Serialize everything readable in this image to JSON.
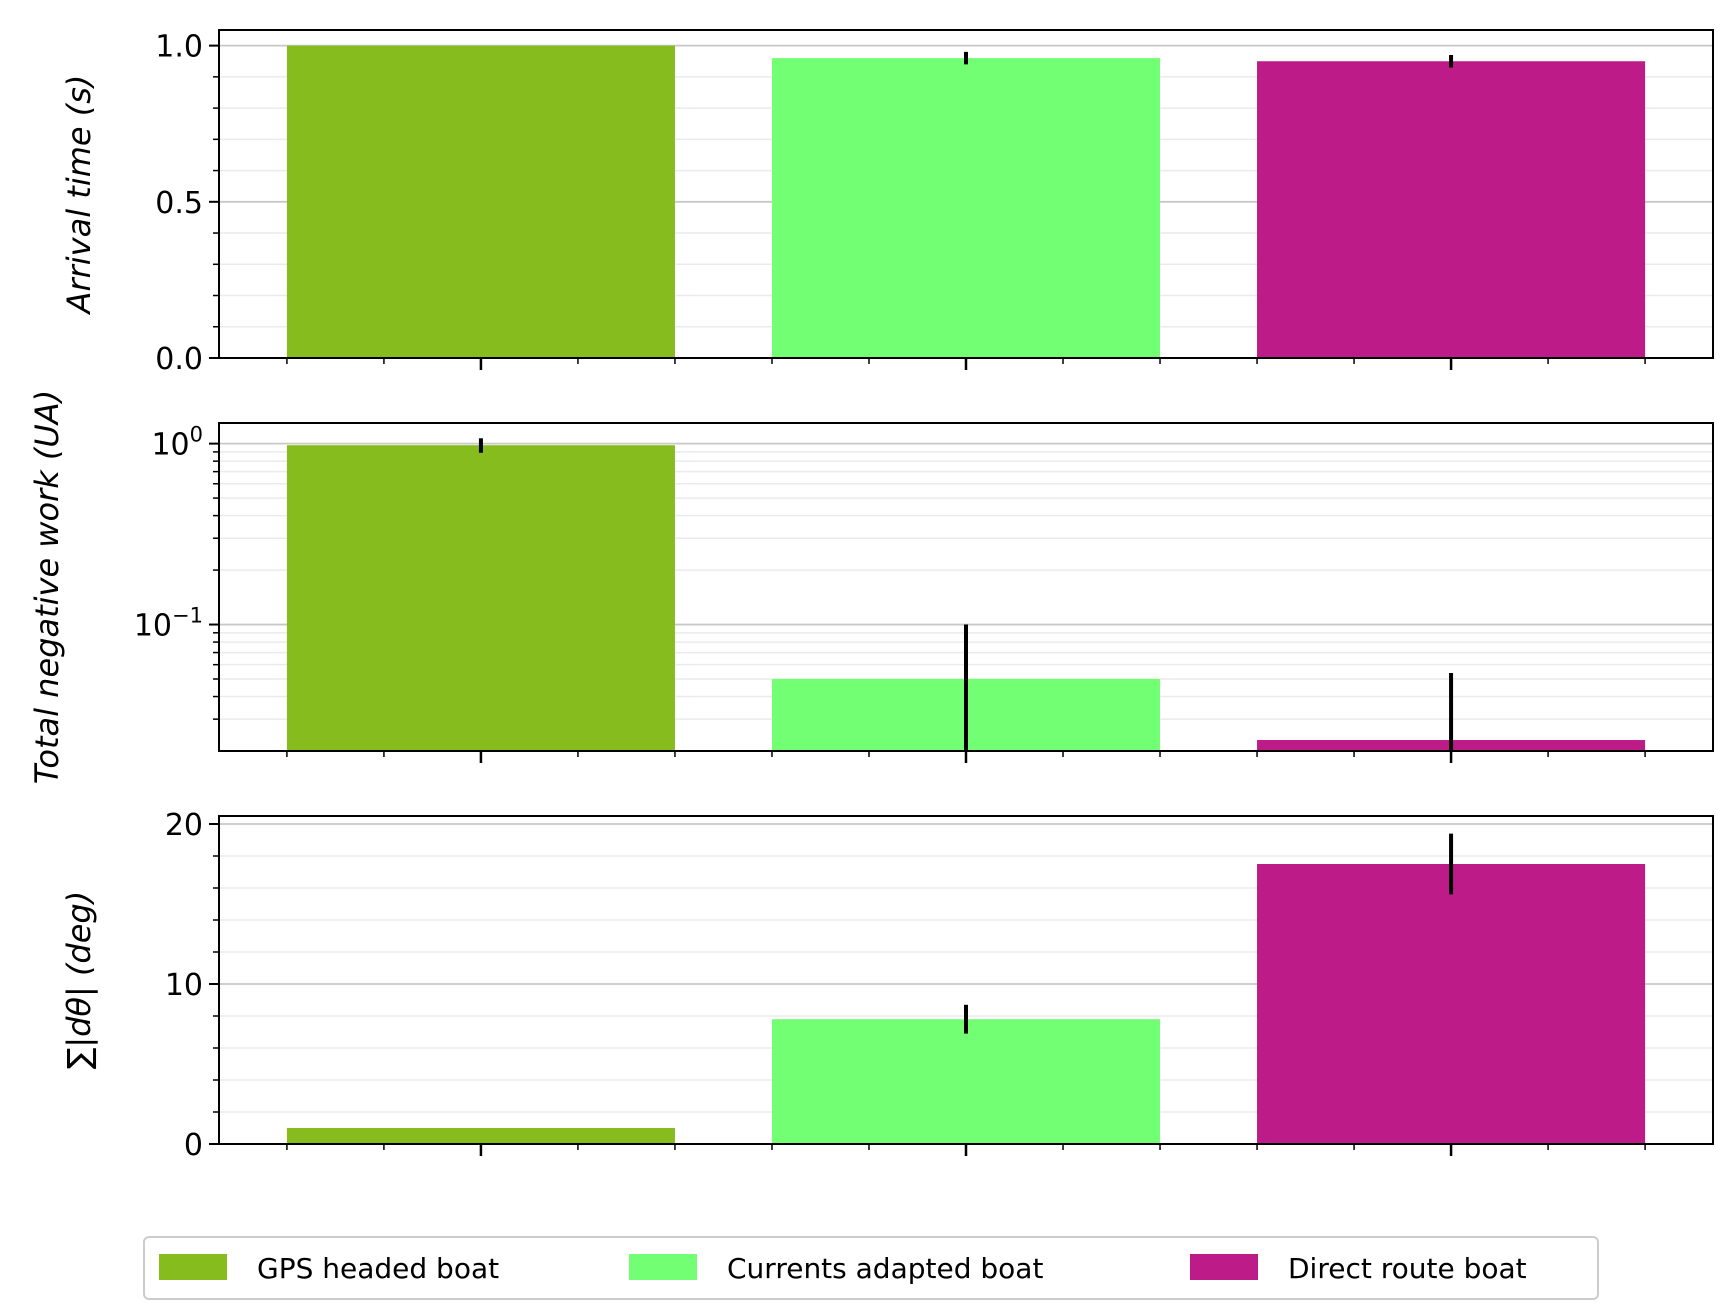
{
  "chart_data": [
    {
      "type": "bar",
      "categories": [
        "GPS headed boat",
        "Currents adapted boat",
        "Direct route boat"
      ],
      "values": [
        1.0,
        0.96,
        0.95
      ],
      "errors": [
        0.0,
        0.02,
        0.02
      ],
      "ylabel": "Arrival time (s)",
      "yscale": "linear",
      "ylim": [
        0,
        1.05
      ],
      "yticks": [
        0.0,
        0.5,
        1.0
      ],
      "ytick_labels": [
        "0.0",
        "0.5",
        "1.0"
      ],
      "grid": true
    },
    {
      "type": "bar",
      "categories": [
        "GPS headed boat",
        "Currents adapted boat",
        "Direct route boat"
      ],
      "values": [
        0.98,
        0.05,
        0.023
      ],
      "errors": [
        0.09,
        0.05,
        0.031
      ],
      "ylabel": "Total negative work (UA)",
      "yscale": "log",
      "ylim": [
        0.02,
        1.3
      ],
      "yticks": [
        0.1,
        1
      ],
      "ytick_labels": [
        {
          "base": "10",
          "exp": "−1"
        },
        {
          "base": "10",
          "exp": "0"
        }
      ],
      "grid": true
    },
    {
      "type": "bar",
      "categories": [
        "GPS headed boat",
        "Currents adapted boat",
        "Direct route boat"
      ],
      "values": [
        1.0,
        7.8,
        17.5
      ],
      "errors": [
        0.0,
        0.9,
        1.9
      ],
      "ylabel": "∑|dθ| (deg)",
      "yscale": "linear",
      "ylim": [
        0,
        20.5
      ],
      "yticks": [
        0,
        10,
        20
      ],
      "ytick_labels": [
        "0",
        "10",
        "20"
      ],
      "grid": true
    }
  ],
  "legend": {
    "placement": "bottom-center",
    "items": [
      {
        "label": "GPS headed boat",
        "color": "#86bc1e"
      },
      {
        "label": "Currents adapted boat",
        "color": "#73ff73"
      },
      {
        "label": "Direct route boat",
        "color": "#bd1b87"
      }
    ]
  },
  "colors": {
    "grid_major": "#c8c8c8",
    "grid_minor": "#ebebeb",
    "error_bar": "#000000"
  }
}
